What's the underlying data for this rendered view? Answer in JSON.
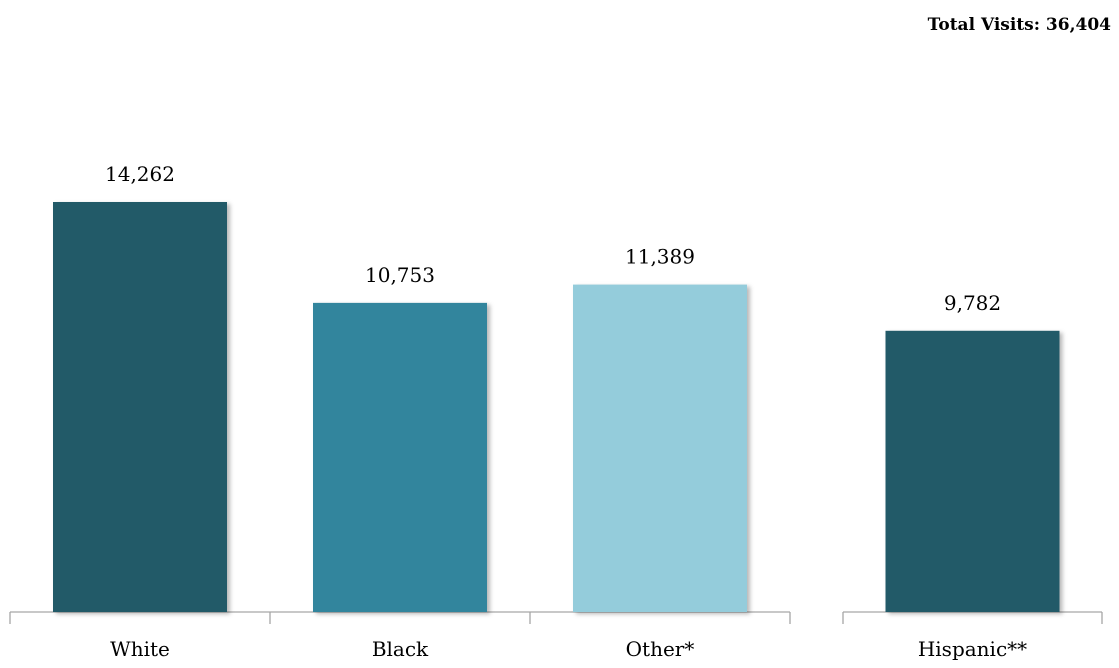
{
  "header": {
    "total_visits": "Total Visits: 36,404"
  },
  "chart_data": [
    {
      "type": "bar",
      "categories": [
        "White",
        "Black",
        "Other*"
      ],
      "values": [
        14262,
        10753,
        11389
      ],
      "data_labels": [
        "14,262",
        "10,753",
        "11,389"
      ],
      "colors": [
        "#225a68",
        "#30859d",
        "#94ccdb"
      ],
      "ylim": [
        0,
        20000
      ],
      "grid": false,
      "legend": "none"
    },
    {
      "type": "bar",
      "categories": [
        "Hispanic**"
      ],
      "values": [
        9782
      ],
      "data_labels": [
        "9,782"
      ],
      "colors": [
        "#225a68"
      ],
      "ylim": [
        0,
        20000
      ],
      "grid": false,
      "legend": "none"
    }
  ]
}
